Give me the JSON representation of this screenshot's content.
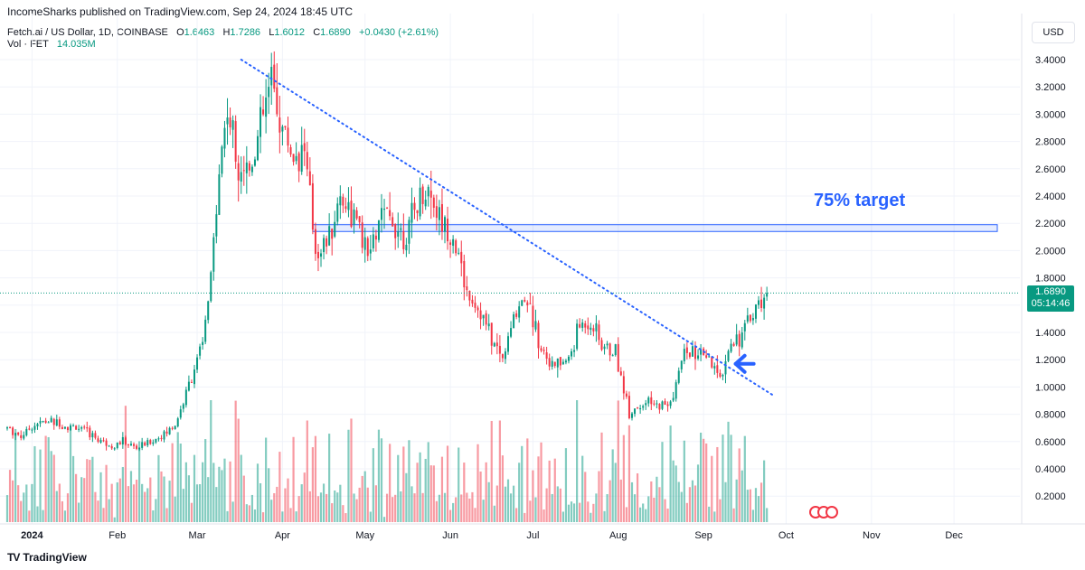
{
  "header": {
    "publisher_text": "IncomeSharks published on TradingView.com, Sep 24, 2024 18:45 UTC"
  },
  "symbol": {
    "description": "Fetch.ai / US Dollar, 1D, COINBASE",
    "o_label": "O",
    "o_value": "1.6463",
    "h_label": "H",
    "h_value": "1.7286",
    "l_label": "L",
    "l_value": "1.6012",
    "c_label": "C",
    "c_value": "1.6890",
    "change": "+0.0430 (+2.61%)"
  },
  "volume": {
    "label": "Vol · FET",
    "value": "14.035M"
  },
  "currency": "USD",
  "price_tag": {
    "price": "1.6890",
    "countdown": "05:14:46"
  },
  "annotation": {
    "target_text": "75% target"
  },
  "footer": {
    "logo": "TV",
    "brand": "TradingView"
  },
  "colors": {
    "up": "#089981",
    "down": "#f23645",
    "trendline": "#2962ff",
    "zone": "#2962ff"
  },
  "chart_data": {
    "type": "candlestick",
    "title": "Fetch.ai / US Dollar, 1D, COINBASE",
    "y_axis": {
      "scale": "linear",
      "ticks": [
        0.2,
        0.4,
        0.6,
        0.8,
        1.0,
        1.2,
        1.4,
        1.6,
        1.8,
        2.0,
        2.2,
        2.4,
        2.6,
        2.8,
        3.0,
        3.2,
        3.4
      ],
      "tick_labels": [
        "0.2000",
        "0.4000",
        "0.6000",
        "0.8000",
        "1.0000",
        "1.2000",
        "1.4000",
        "1.6000",
        "1.8000",
        "2.0000",
        "2.2000",
        "2.4000",
        "2.6000",
        "2.8000",
        "3.0000",
        "3.2000",
        "3.4000"
      ]
    },
    "x_axis": {
      "start": "2023-12-23",
      "end": "2024-12-31",
      "tick_labels": [
        [
          "2024",
          "2024-01-01"
        ],
        [
          "Feb",
          "2024-02-01"
        ],
        [
          "Mar",
          "2024-03-01"
        ],
        [
          "Apr",
          "2024-04-01"
        ],
        [
          "May",
          "2024-05-01"
        ],
        [
          "Jun",
          "2024-06-01"
        ],
        [
          "Jul",
          "2024-07-01"
        ],
        [
          "Aug",
          "2024-08-01"
        ],
        [
          "Sep",
          "2024-09-01"
        ],
        [
          "Oct",
          "2024-10-01"
        ],
        [
          "Nov",
          "2024-11-01"
        ],
        [
          "Dec",
          "2024-12-01"
        ]
      ]
    },
    "grid": true,
    "last_price": 1.689,
    "close_path": [
      [
        "2023-12-23",
        0.7
      ],
      [
        "2023-12-28",
        0.64
      ],
      [
        "2024-01-02",
        0.73
      ],
      [
        "2024-01-08",
        0.75
      ],
      [
        "2024-01-12",
        0.72
      ],
      [
        "2024-01-18",
        0.7
      ],
      [
        "2024-01-25",
        0.62
      ],
      [
        "2024-01-30",
        0.57
      ],
      [
        "2024-02-03",
        0.6
      ],
      [
        "2024-02-08",
        0.55
      ],
      [
        "2024-02-13",
        0.6
      ],
      [
        "2024-02-18",
        0.65
      ],
      [
        "2024-02-22",
        0.72
      ],
      [
        "2024-02-26",
        0.95
      ],
      [
        "2024-02-29",
        1.15
      ],
      [
        "2024-03-03",
        1.3
      ],
      [
        "2024-03-06",
        1.8
      ],
      [
        "2024-03-09",
        2.6
      ],
      [
        "2024-03-12",
        3.05
      ],
      [
        "2024-03-15",
        2.7
      ],
      [
        "2024-03-20",
        2.6
      ],
      [
        "2024-03-24",
        2.9
      ],
      [
        "2024-03-28",
        3.25
      ],
      [
        "2024-04-01",
        2.9
      ],
      [
        "2024-04-05",
        2.7
      ],
      [
        "2024-04-09",
        2.75
      ],
      [
        "2024-04-13",
        2.0
      ],
      [
        "2024-04-18",
        2.1
      ],
      [
        "2024-04-22",
        2.4
      ],
      [
        "2024-04-27",
        2.25
      ],
      [
        "2024-05-02",
        1.95
      ],
      [
        "2024-05-07",
        2.25
      ],
      [
        "2024-05-12",
        2.2
      ],
      [
        "2024-05-16",
        2.1
      ],
      [
        "2024-05-20",
        2.35
      ],
      [
        "2024-05-24",
        2.45
      ],
      [
        "2024-05-28",
        2.25
      ],
      [
        "2024-06-02",
        2.1
      ],
      [
        "2024-06-07",
        1.7
      ],
      [
        "2024-06-12",
        1.55
      ],
      [
        "2024-06-16",
        1.35
      ],
      [
        "2024-06-20",
        1.2
      ],
      [
        "2024-06-24",
        1.5
      ],
      [
        "2024-06-28",
        1.7
      ],
      [
        "2024-07-03",
        1.35
      ],
      [
        "2024-07-08",
        1.15
      ],
      [
        "2024-07-14",
        1.2
      ],
      [
        "2024-07-18",
        1.45
      ],
      [
        "2024-07-22",
        1.48
      ],
      [
        "2024-07-26",
        1.3
      ],
      [
        "2024-07-31",
        1.25
      ],
      [
        "2024-08-05",
        0.82
      ],
      [
        "2024-08-10",
        0.88
      ],
      [
        "2024-08-15",
        0.86
      ],
      [
        "2024-08-20",
        0.88
      ],
      [
        "2024-08-25",
        1.25
      ],
      [
        "2024-08-29",
        1.25
      ],
      [
        "2024-09-03",
        1.18
      ],
      [
        "2024-09-07",
        1.05
      ],
      [
        "2024-09-11",
        1.35
      ],
      [
        "2024-09-15",
        1.38
      ],
      [
        "2024-09-19",
        1.55
      ],
      [
        "2024-09-22",
        1.65
      ],
      [
        "2024-09-24",
        1.689
      ]
    ],
    "volume_range": [
      0.0,
      1.0
    ],
    "annotations": {
      "trendline": {
        "from": [
          "2024-03-17",
          3.4
        ],
        "to": [
          "2024-09-27",
          0.93
        ],
        "style": "dotted"
      },
      "target_zone": {
        "x_from": "2024-04-12",
        "x_to": "2024-12-31",
        "y_low": 2.14,
        "y_high": 2.19,
        "label": "75% target"
      },
      "arrow": {
        "at": [
          "2024-09-12",
          1.17
        ],
        "direction": "left"
      }
    }
  }
}
